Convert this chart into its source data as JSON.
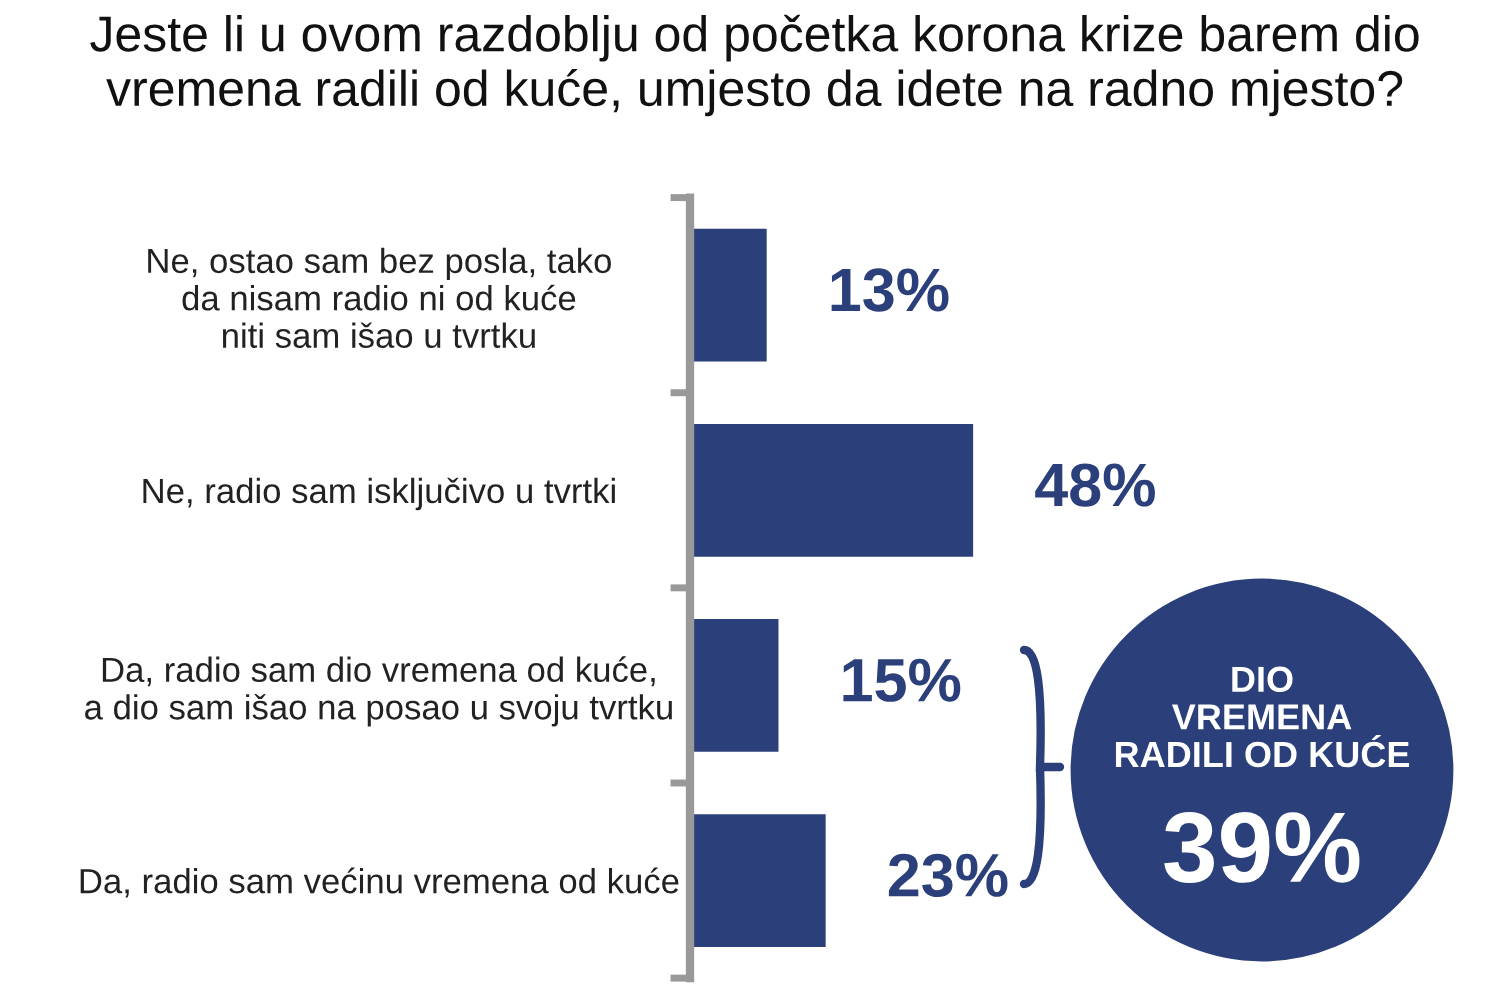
{
  "chart_data": {
    "type": "bar",
    "orientation": "horizontal",
    "title": "Jeste li u ovom razdoblju od početka korona krize barem dio\nvremena radili od kuće, umjesto da idete na radno mjesto?",
    "categories": [
      "Ne, ostao sam bez posla, tako\nda nisam radio ni od kuće\nniti sam išao u tvrtku",
      "Ne, radio sam isključivo u tvrtki",
      "Da, radio sam dio vremena od kuće,\na dio sam išao na posao u svoju tvrtku",
      "Da, radio sam većinu vremena od kuće"
    ],
    "values": [
      13,
      48,
      15,
      23
    ],
    "value_labels": [
      "13%",
      "48%",
      "15%",
      "23%"
    ],
    "color": "#2b3f7a",
    "annotations": [
      "DIO\nVREMENA\nRADILI OD KUĆE",
      "39%"
    ]
  }
}
